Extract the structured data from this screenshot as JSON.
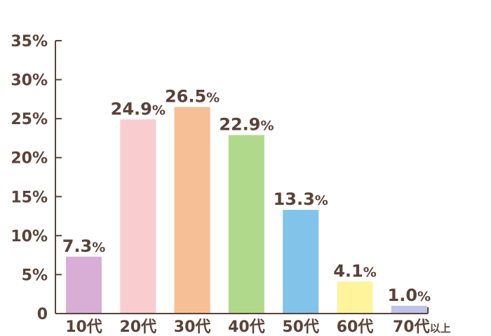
{
  "chart_data": {
    "type": "bar",
    "title": "",
    "xlabel": "",
    "ylabel": "",
    "ylim": [
      0,
      35
    ],
    "yticks": [
      {
        "value": 0,
        "label": "0"
      },
      {
        "value": 5,
        "label": "5%"
      },
      {
        "value": 10,
        "label": "10%"
      },
      {
        "value": 15,
        "label": "15%"
      },
      {
        "value": 20,
        "label": "20%"
      },
      {
        "value": 25,
        "label": "25%"
      },
      {
        "value": 30,
        "label": "30%"
      },
      {
        "value": 35,
        "label": "35%"
      }
    ],
    "grid": false,
    "categories": [
      {
        "label": "10代",
        "suffix": ""
      },
      {
        "label": "20代",
        "suffix": ""
      },
      {
        "label": "30代",
        "suffix": ""
      },
      {
        "label": "40代",
        "suffix": ""
      },
      {
        "label": "50代",
        "suffix": ""
      },
      {
        "label": "60代",
        "suffix": ""
      },
      {
        "label": "70代",
        "suffix": "以上"
      }
    ],
    "values": [
      7.3,
      24.9,
      26.5,
      22.9,
      13.3,
      4.1,
      1.0
    ],
    "value_labels": [
      "7.3",
      "24.9",
      "26.5",
      "22.9",
      "13.3",
      "4.1",
      "1.0"
    ],
    "value_unit": "%",
    "colors": [
      "#d9aed6",
      "#f9cdd0",
      "#f6bf96",
      "#b1d98c",
      "#82c3ea",
      "#fff49c",
      "#bfc3e8"
    ],
    "axis_color": "#5a4238",
    "text_color": "#5a4238"
  }
}
